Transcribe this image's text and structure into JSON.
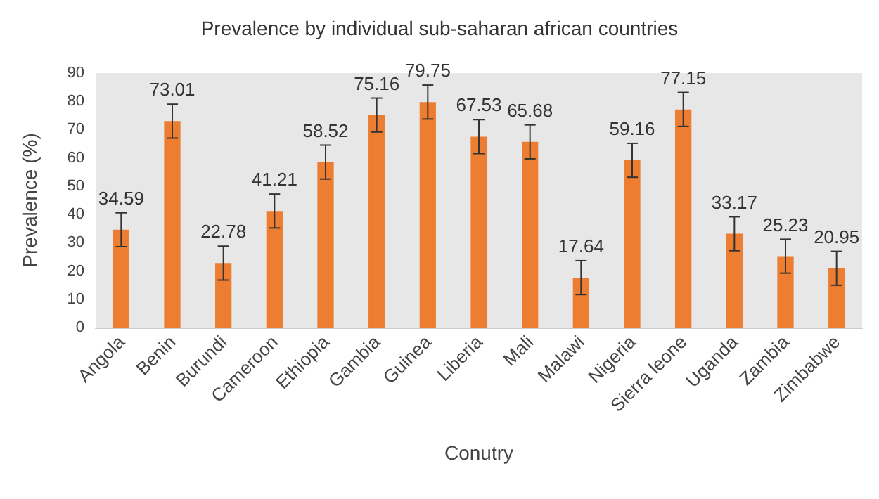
{
  "chart_data": {
    "type": "bar",
    "title": "Prevalence by individual sub-saharan african countries",
    "xlabel": "Conutry",
    "ylabel": "Prevalence (%)",
    "categories": [
      "Angola",
      "Benin",
      "Burundi",
      "Cameroon",
      "Ethiopia",
      "Gambia",
      "Guinea",
      "Liberia",
      "Mali",
      "Malawi",
      "Nigeria",
      "Sierra leone",
      "Uganda",
      "Zambia",
      "Zimbabwe"
    ],
    "values": [
      34.59,
      73.01,
      22.78,
      41.21,
      58.52,
      75.16,
      79.75,
      67.53,
      65.68,
      17.64,
      59.16,
      77.15,
      33.17,
      25.23,
      20.95
    ],
    "errors": [
      6,
      6,
      6,
      6,
      6,
      6,
      6,
      6,
      6,
      6,
      6,
      6,
      6,
      6,
      6
    ],
    "color": "#ed7d31",
    "data_labels": true,
    "ylim": [
      0,
      90
    ],
    "yticks": [
      0,
      10,
      20,
      30,
      40,
      50,
      60,
      70,
      80,
      90
    ],
    "grid": false
  }
}
